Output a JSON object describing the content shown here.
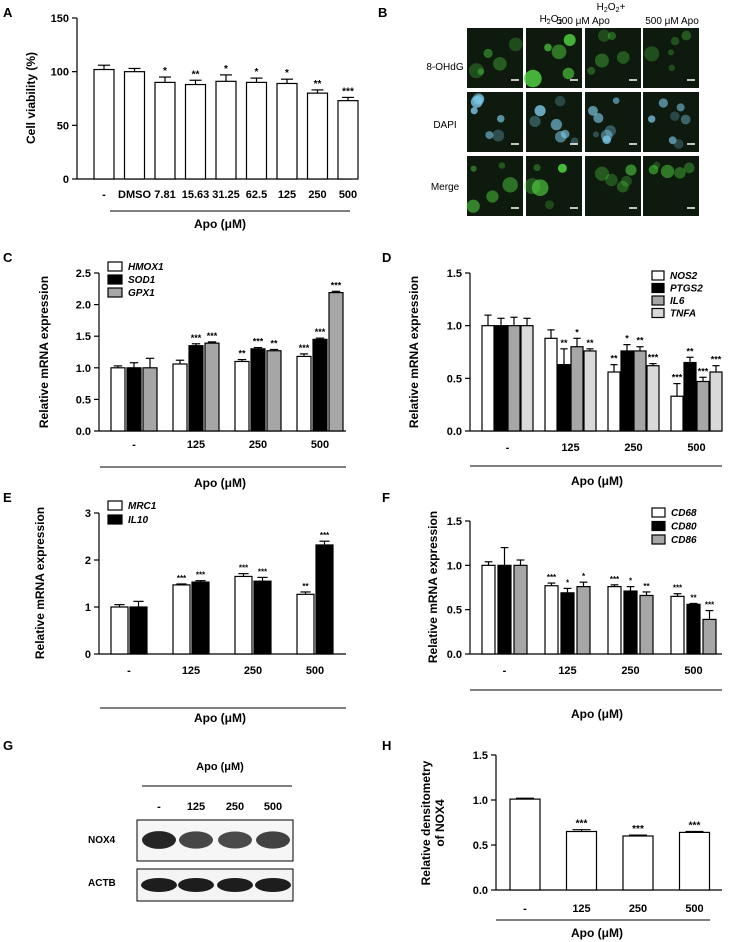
{
  "panels": {
    "A": "A",
    "B": "B",
    "C": "C",
    "D": "D",
    "E": "E",
    "F": "F",
    "G": "G",
    "H": "H"
  },
  "colors": {
    "ink": "#000000",
    "white_bar": "#ffffff",
    "black_bar": "#000000",
    "gray_bar": "#a6a6a6",
    "lightgray_bar": "#d9d9d9",
    "micro_bg": "#0d1a0d",
    "fluor_green": "#4fd040",
    "fluor_blue": "#7cc8e8"
  },
  "chart_data": [
    {
      "id": "A",
      "type": "bar",
      "ylabel": "Cell viability (%)",
      "xlabel": "Apo (μM)",
      "ylim": [
        0,
        150
      ],
      "yticks": [
        "0",
        "50",
        "100",
        "150"
      ],
      "categories": [
        "-",
        "DMSO",
        "7.81",
        "15.63",
        "31.25",
        "62.5",
        "125",
        "250",
        "500"
      ],
      "series": [
        {
          "values": [
            102,
            100,
            90,
            88,
            91,
            90,
            89,
            80,
            73
          ],
          "errors": [
            4,
            3,
            5,
            4,
            6,
            4,
            4,
            3,
            3
          ],
          "marks": [
            "",
            "",
            "*",
            "**",
            "*",
            "*",
            "*",
            "**",
            "***"
          ]
        }
      ]
    },
    {
      "id": "C",
      "type": "bar",
      "ylabel": "Relative mRNA expression",
      "xlabel": "Apo (μM)",
      "ylim": [
        0,
        2.5
      ],
      "yticks": [
        "0.0",
        "0.5",
        "1.0",
        "1.5",
        "2.0",
        "2.5"
      ],
      "categories": [
        "-",
        "125",
        "250",
        "500"
      ],
      "series": [
        {
          "name": "HMOX1",
          "values": [
            1.0,
            1.06,
            1.1,
            1.18
          ],
          "errors": [
            0.03,
            0.06,
            0.03,
            0.04
          ],
          "marks": [
            "",
            "",
            "**",
            "***"
          ]
        },
        {
          "name": "SOD1",
          "values": [
            1.0,
            1.35,
            1.3,
            1.45
          ],
          "errors": [
            0.08,
            0.03,
            0.02,
            0.02
          ],
          "marks": [
            "",
            "***",
            "***",
            "***"
          ]
        },
        {
          "name": "GPX1",
          "values": [
            1.0,
            1.39,
            1.27,
            2.19
          ],
          "errors": [
            0.15,
            0.02,
            0.02,
            0.02
          ],
          "marks": [
            "",
            "***",
            "**",
            "***"
          ]
        }
      ]
    },
    {
      "id": "D",
      "type": "bar",
      "ylabel": "Relative mRNA expression",
      "xlabel": "Apo (μM)",
      "ylim": [
        0,
        1.5
      ],
      "yticks": [
        "0.0",
        "0.5",
        "1.0",
        "1.5"
      ],
      "categories": [
        "-",
        "125",
        "250",
        "500"
      ],
      "series": [
        {
          "name": "NOS2",
          "values": [
            1.0,
            0.88,
            0.56,
            0.33
          ],
          "errors": [
            0.1,
            0.08,
            0.07,
            0.12
          ],
          "marks": [
            "",
            "",
            "**",
            "***"
          ]
        },
        {
          "name": "PTGS2",
          "values": [
            1.0,
            0.63,
            0.76,
            0.65
          ],
          "errors": [
            0.07,
            0.15,
            0.06,
            0.05
          ],
          "marks": [
            "",
            "**",
            "*",
            "**"
          ]
        },
        {
          "name": "IL6",
          "values": [
            1.0,
            0.8,
            0.76,
            0.47
          ],
          "errors": [
            0.08,
            0.08,
            0.04,
            0.04
          ],
          "marks": [
            "",
            "*",
            "**",
            "***"
          ]
        },
        {
          "name": "TNFA",
          "values": [
            1.0,
            0.76,
            0.62,
            0.56
          ],
          "errors": [
            0.07,
            0.02,
            0.02,
            0.06
          ],
          "marks": [
            "",
            "**",
            "***",
            "***"
          ]
        }
      ]
    },
    {
      "id": "E",
      "type": "bar",
      "ylabel": "Relative mRNA expression",
      "xlabel": "Apo (μM)",
      "ylim": [
        0,
        3
      ],
      "yticks": [
        "0",
        "1",
        "2",
        "3"
      ],
      "categories": [
        "-",
        "125",
        "250",
        "500"
      ],
      "series": [
        {
          "name": "MRC1",
          "values": [
            1.0,
            1.47,
            1.65,
            1.27
          ],
          "errors": [
            0.05,
            0.02,
            0.06,
            0.05
          ],
          "marks": [
            "",
            "***",
            "***",
            "**"
          ]
        },
        {
          "name": "IL10",
          "values": [
            1.0,
            1.53,
            1.55,
            2.32
          ],
          "errors": [
            0.12,
            0.03,
            0.08,
            0.08
          ],
          "marks": [
            "",
            "***",
            "***",
            "***"
          ]
        }
      ]
    },
    {
      "id": "F",
      "type": "bar",
      "ylabel": "Relative mRNA expression",
      "xlabel": "Apo (μM)",
      "ylim": [
        0,
        1.5
      ],
      "yticks": [
        "0.0",
        "0.5",
        "1.0",
        "1.5"
      ],
      "categories": [
        "-",
        "125",
        "250",
        "500"
      ],
      "series": [
        {
          "name": "CD68",
          "values": [
            1.0,
            0.77,
            0.76,
            0.65
          ],
          "errors": [
            0.04,
            0.03,
            0.02,
            0.03
          ],
          "marks": [
            "",
            "***",
            "***",
            "***"
          ]
        },
        {
          "name": "CD80",
          "values": [
            1.0,
            0.69,
            0.71,
            0.56
          ],
          "errors": [
            0.2,
            0.05,
            0.05,
            0.01
          ],
          "marks": [
            "",
            "*",
            "*",
            "**"
          ]
        },
        {
          "name": "CD86",
          "values": [
            1.0,
            0.76,
            0.66,
            0.39
          ],
          "errors": [
            0.06,
            0.05,
            0.04,
            0.1
          ],
          "marks": [
            "",
            "*",
            "**",
            "***"
          ]
        }
      ]
    },
    {
      "id": "H",
      "type": "bar",
      "ylabel": "Relative densitometry of NOX4",
      "ylabel_lines": [
        "Relative densitometry",
        "of NOX4"
      ],
      "xlabel": "Apo (μM)",
      "ylim": [
        0,
        1.5
      ],
      "yticks": [
        "0.0",
        "0.5",
        "1.0",
        "1.5"
      ],
      "categories": [
        "-",
        "125",
        "250",
        "500"
      ],
      "series": [
        {
          "values": [
            1.01,
            0.65,
            0.6,
            0.64
          ],
          "errors": [
            0.01,
            0.02,
            0.01,
            0.01
          ],
          "marks": [
            "",
            "***",
            "***",
            "***"
          ]
        }
      ]
    }
  ],
  "microscopy": {
    "columns": [
      "-",
      "H2O2",
      "H2O2 +",
      "500 μM Apo"
    ],
    "col_h2o2": "H",
    "col_h2o2_sub": "2",
    "col_h2o2_o": "O",
    "col3_line1": "+",
    "col3_line2": "500 μM Apo",
    "col4": "500 μM Apo",
    "col1": "-",
    "rows": [
      "8-OHdG",
      "DAPI",
      "Merge"
    ]
  },
  "western": {
    "title": "Apo (μM)",
    "lanes": [
      "-",
      "125",
      "250",
      "500"
    ],
    "bands": [
      "NOX4",
      "ACTB"
    ]
  }
}
